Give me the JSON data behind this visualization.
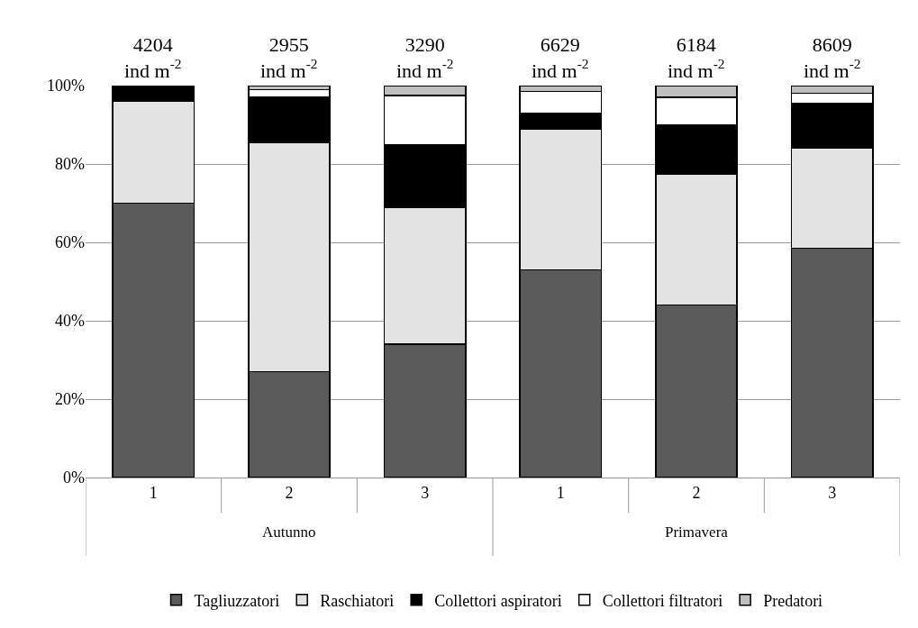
{
  "chart_data": {
    "type": "bar",
    "stacked": true,
    "categories": [
      "1",
      "2",
      "3",
      "1",
      "2",
      "3"
    ],
    "series": [
      {
        "name": "Tagliuzzatori",
        "color": "#5a5a5a",
        "values": [
          70,
          27,
          34,
          53,
          44,
          58.5
        ]
      },
      {
        "name": "Raschiatori",
        "color": "#e3e3e3",
        "values": [
          26,
          58.5,
          35,
          36,
          33.5,
          25.5
        ]
      },
      {
        "name": "Collettori aspiratori",
        "color": "#000000",
        "values": [
          4,
          11.5,
          16,
          4,
          12.5,
          11.5
        ]
      },
      {
        "name": "Collettori filtratori",
        "color": "#ffffff",
        "values": [
          0,
          2,
          12.5,
          5.5,
          7,
          2.5
        ]
      },
      {
        "name": "Predatori",
        "color": "#bfbfbf",
        "values": [
          0,
          1,
          2.5,
          1.5,
          3,
          2
        ]
      }
    ],
    "totals": [
      "4204\nind m$^{-2}$",
      "2955\nind m$^{-2}$",
      "3290\nind m$^{-2}$",
      "6629\nind m$^{-2}$",
      "6184\nind m$^{-2}$",
      "8609\nind m$^{-2}$"
    ],
    "annotations": [
      "Autunno",
      "Primavera"
    ],
    "ylim": [
      0,
      100
    ],
    "yticks": [
      {
        "value": 0,
        "label": "0%"
      },
      {
        "value": 20,
        "label": "20%"
      },
      {
        "value": 40,
        "label": "40%"
      },
      {
        "value": 60,
        "label": "60%"
      },
      {
        "value": 80,
        "label": "80%"
      },
      {
        "value": 100,
        "label": "100%"
      }
    ],
    "grid": "y",
    "legend": "bottom"
  }
}
